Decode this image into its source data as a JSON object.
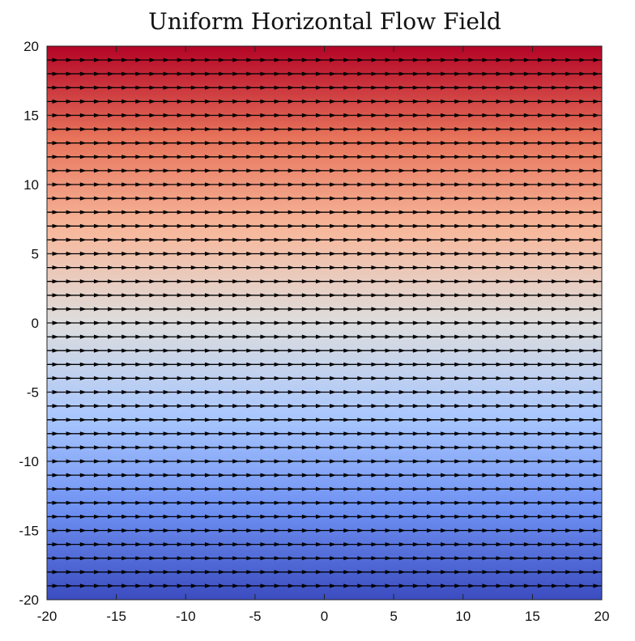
{
  "chart_data": {
    "type": "quiver",
    "title": "Uniform Horizontal Flow Field",
    "xlabel": "",
    "ylabel": "",
    "xlim": [
      -20,
      20
    ],
    "ylim": [
      -20,
      20
    ],
    "x_ticks": [
      -20,
      -15,
      -10,
      -5,
      0,
      5,
      10,
      15,
      20
    ],
    "y_ticks": [
      -20,
      -15,
      -10,
      -5,
      0,
      5,
      10,
      15,
      20
    ],
    "x_tick_labels": [
      "-20",
      "-15",
      "-10",
      "-5",
      "0",
      "5",
      "10",
      "15",
      "20"
    ],
    "y_tick_labels": [
      "-20",
      "-15",
      "-10",
      "-5",
      "0",
      "5",
      "10",
      "15",
      "20"
    ],
    "grid": false,
    "background": {
      "type": "filled-contour",
      "varies_with": "y",
      "value_range": [
        -20,
        20
      ],
      "colormap": [
        "#3b4cc0",
        "#6f92f3",
        "#aac7fd",
        "#dddddd",
        "#f7b89c",
        "#e7745b",
        "#b40426"
      ]
    },
    "field": {
      "u": 1,
      "v": 0,
      "arrow_color": "#000000",
      "y_spacing": 1,
      "x_spacing": 1
    }
  }
}
